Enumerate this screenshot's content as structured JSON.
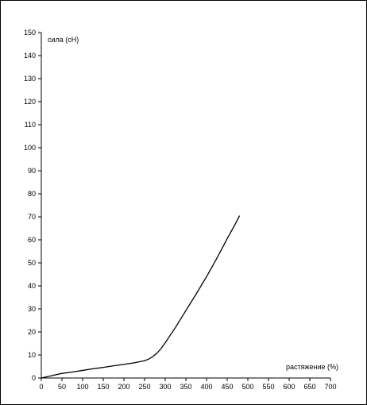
{
  "chart_data": {
    "type": "line",
    "title": "",
    "ylabel": "сила (сН)",
    "xlabel": "растяжение (%)",
    "xlim": [
      0,
      700
    ],
    "ylim": [
      0,
      150
    ],
    "x_ticks": [
      0,
      50,
      100,
      150,
      200,
      250,
      300,
      350,
      400,
      450,
      500,
      550,
      600,
      650,
      700
    ],
    "y_ticks": [
      0,
      10,
      20,
      30,
      40,
      50,
      60,
      70,
      80,
      90,
      100,
      110,
      120,
      130,
      140,
      150
    ],
    "grid": false,
    "series": [
      {
        "x": [
          0,
          25,
          50,
          75,
          100,
          125,
          150,
          175,
          200,
          225,
          250,
          260,
          270,
          280,
          290,
          300,
          310,
          325,
          350,
          375,
          400,
          425,
          450,
          470,
          480
        ],
        "y": [
          0,
          1,
          2,
          2.6,
          3.3,
          4,
          4.6,
          5.3,
          5.9,
          6.6,
          7.5,
          8.2,
          9.3,
          10.8,
          12.8,
          15.3,
          18,
          22,
          29.3,
          36.5,
          44,
          52,
          60.5,
          67,
          70.5
        ]
      }
    ],
    "line_color": "#000000"
  }
}
